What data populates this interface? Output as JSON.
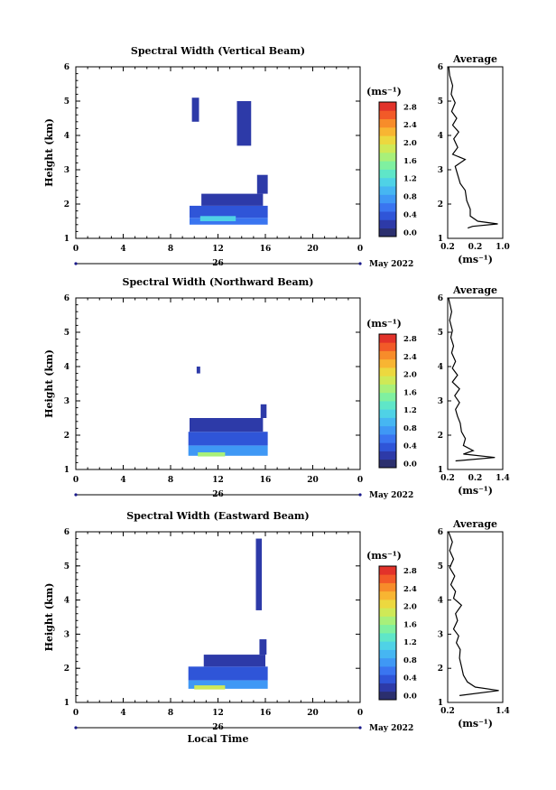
{
  "chart_data": [
    {
      "type": "heatmap",
      "title": "Spectral Width (Vertical Beam)",
      "ylabel": "Height (km)",
      "xlabel": "",
      "xlim": [
        0,
        24
      ],
      "ylim": [
        1,
        6
      ],
      "xticks": [
        "0",
        "4",
        "8",
        "12",
        "16",
        "20",
        "0"
      ],
      "yticks": [
        "1",
        "2",
        "3",
        "4",
        "5",
        "6"
      ],
      "date_center_label": "26",
      "date_right_label": "May 2022",
      "colorbar": {
        "unit_label": "(ms⁻¹)",
        "tick_labels": [
          "0.0",
          "0.4",
          "0.8",
          "1.2",
          "1.6",
          "2.0",
          "2.4",
          "2.8"
        ],
        "range": [
          0,
          3.0
        ]
      },
      "data_blocks": [
        {
          "t0": 9.6,
          "t1": 16.2,
          "h0": 1.4,
          "h1": 1.6,
          "value": 0.7
        },
        {
          "t0": 9.6,
          "t1": 16.2,
          "h0": 1.6,
          "h1": 1.95,
          "value": 0.5
        },
        {
          "t0": 10.6,
          "t1": 15.8,
          "h0": 1.95,
          "h1": 2.3,
          "value": 0.35
        },
        {
          "t0": 15.3,
          "t1": 16.2,
          "h0": 2.3,
          "h1": 2.85,
          "value": 0.3
        },
        {
          "t0": 9.8,
          "t1": 10.4,
          "h0": 4.4,
          "h1": 5.1,
          "value": 0.25
        },
        {
          "t0": 13.6,
          "t1": 14.8,
          "h0": 3.7,
          "h1": 5.0,
          "value": 0.25
        },
        {
          "t0": 10.5,
          "t1": 13.5,
          "h0": 1.5,
          "h1": 1.65,
          "value": 1.3
        }
      ],
      "profile": {
        "title": "Average",
        "xticks": [
          "0.2",
          "0.2",
          "1.0"
        ],
        "xlabel": "(ms⁻¹)",
        "yticks": [
          "1",
          "2",
          "3",
          "4",
          "5",
          "6"
        ],
        "xlim": [
          0.1,
          1.2
        ],
        "ylim": [
          1,
          6
        ],
        "values": [
          [
            0.5,
            1.3
          ],
          [
            0.6,
            1.35
          ],
          [
            1.1,
            1.42
          ],
          [
            0.7,
            1.5
          ],
          [
            0.55,
            1.65
          ],
          [
            0.55,
            1.85
          ],
          [
            0.48,
            2.1
          ],
          [
            0.45,
            2.4
          ],
          [
            0.35,
            2.6
          ],
          [
            0.3,
            2.85
          ],
          [
            0.25,
            3.1
          ],
          [
            0.45,
            3.3
          ],
          [
            0.2,
            3.45
          ],
          [
            0.3,
            3.65
          ],
          [
            0.22,
            3.9
          ],
          [
            0.32,
            4.1
          ],
          [
            0.2,
            4.3
          ],
          [
            0.28,
            4.5
          ],
          [
            0.18,
            4.7
          ],
          [
            0.25,
            4.95
          ],
          [
            0.17,
            5.2
          ],
          [
            0.2,
            5.45
          ],
          [
            0.14,
            5.75
          ],
          [
            0.12,
            6.0
          ]
        ]
      }
    },
    {
      "type": "heatmap",
      "title": "Spectral Width (Northward Beam)",
      "ylabel": "Height (km)",
      "xlabel": "",
      "xlim": [
        0,
        24
      ],
      "ylim": [
        1,
        6
      ],
      "xticks": [
        "0",
        "4",
        "8",
        "12",
        "16",
        "20",
        "0"
      ],
      "yticks": [
        "1",
        "2",
        "3",
        "4",
        "5",
        "6"
      ],
      "date_center_label": "26",
      "date_right_label": "May 2022",
      "colorbar": {
        "unit_label": "(ms⁻¹)",
        "tick_labels": [
          "0.0",
          "0.4",
          "0.8",
          "1.2",
          "1.6",
          "2.0",
          "2.4",
          "2.8"
        ],
        "range": [
          0,
          3.0
        ]
      },
      "data_blocks": [
        {
          "t0": 9.5,
          "t1": 16.2,
          "h0": 1.4,
          "h1": 1.7,
          "value": 0.75
        },
        {
          "t0": 9.5,
          "t1": 16.2,
          "h0": 1.7,
          "h1": 2.1,
          "value": 0.5
        },
        {
          "t0": 9.6,
          "t1": 15.8,
          "h0": 2.1,
          "h1": 2.5,
          "value": 0.35
        },
        {
          "t0": 15.6,
          "t1": 16.1,
          "h0": 2.5,
          "h1": 2.9,
          "value": 0.3
        },
        {
          "t0": 10.2,
          "t1": 10.5,
          "h0": 3.8,
          "h1": 4.0,
          "value": 0.3
        },
        {
          "t0": 10.3,
          "t1": 12.6,
          "h0": 1.38,
          "h1": 1.5,
          "value": 1.8
        }
      ],
      "profile": {
        "title": "Average",
        "xticks": [
          "0.2",
          "0.2",
          "1.4"
        ],
        "xlabel": "(ms⁻¹)",
        "yticks": [
          "1",
          "2",
          "3",
          "4",
          "5",
          "6"
        ],
        "xlim": [
          0.1,
          1.5
        ],
        "ylim": [
          1,
          6
        ],
        "values": [
          [
            0.3,
            1.25
          ],
          [
            1.3,
            1.35
          ],
          [
            0.5,
            1.45
          ],
          [
            0.75,
            1.55
          ],
          [
            0.5,
            1.7
          ],
          [
            0.55,
            1.9
          ],
          [
            0.45,
            2.1
          ],
          [
            0.42,
            2.35
          ],
          [
            0.35,
            2.55
          ],
          [
            0.3,
            2.75
          ],
          [
            0.4,
            2.95
          ],
          [
            0.28,
            3.15
          ],
          [
            0.4,
            3.35
          ],
          [
            0.22,
            3.55
          ],
          [
            0.35,
            3.75
          ],
          [
            0.22,
            3.95
          ],
          [
            0.3,
            4.15
          ],
          [
            0.2,
            4.4
          ],
          [
            0.25,
            4.6
          ],
          [
            0.18,
            4.85
          ],
          [
            0.22,
            5.05
          ],
          [
            0.15,
            5.35
          ],
          [
            0.2,
            5.6
          ],
          [
            0.12,
            6.0
          ]
        ]
      }
    },
    {
      "type": "heatmap",
      "title": "Spectral Width (Eastward Beam)",
      "ylabel": "Height (km)",
      "xlabel": "Local Time",
      "xlim": [
        0,
        24
      ],
      "ylim": [
        1,
        6
      ],
      "xticks": [
        "0",
        "4",
        "8",
        "12",
        "16",
        "20",
        "0"
      ],
      "yticks": [
        "1",
        "2",
        "3",
        "4",
        "5",
        "6"
      ],
      "date_center_label": "26",
      "date_right_label": "May 2022",
      "colorbar": {
        "unit_label": "(ms⁻¹)",
        "tick_labels": [
          "0.0",
          "0.4",
          "0.8",
          "1.2",
          "1.6",
          "2.0",
          "2.4",
          "2.8"
        ],
        "range": [
          0,
          3.0
        ]
      },
      "data_blocks": [
        {
          "t0": 9.5,
          "t1": 16.2,
          "h0": 1.4,
          "h1": 1.65,
          "value": 0.75
        },
        {
          "t0": 9.5,
          "t1": 16.2,
          "h0": 1.65,
          "h1": 2.05,
          "value": 0.5
        },
        {
          "t0": 10.8,
          "t1": 16.0,
          "h0": 2.05,
          "h1": 2.4,
          "value": 0.35
        },
        {
          "t0": 15.5,
          "t1": 16.1,
          "h0": 2.4,
          "h1": 2.85,
          "value": 0.3
        },
        {
          "t0": 15.2,
          "t1": 15.7,
          "h0": 3.7,
          "h1": 5.8,
          "value": 0.3
        },
        {
          "t0": 10.0,
          "t1": 12.6,
          "h0": 1.38,
          "h1": 1.5,
          "value": 1.9
        }
      ],
      "profile": {
        "title": "Average",
        "xticks": [
          "0.2",
          "1.4"
        ],
        "xlabel": "(ms⁻¹)",
        "yticks": [
          "1",
          "2",
          "3",
          "4",
          "5",
          "6"
        ],
        "xlim": [
          0.1,
          1.5
        ],
        "ylim": [
          1,
          6
        ],
        "values": [
          [
            0.4,
            1.2
          ],
          [
            1.4,
            1.35
          ],
          [
            0.8,
            1.45
          ],
          [
            0.6,
            1.6
          ],
          [
            0.5,
            1.8
          ],
          [
            0.45,
            2.05
          ],
          [
            0.4,
            2.3
          ],
          [
            0.42,
            2.55
          ],
          [
            0.32,
            2.75
          ],
          [
            0.38,
            2.95
          ],
          [
            0.25,
            3.15
          ],
          [
            0.35,
            3.4
          ],
          [
            0.3,
            3.6
          ],
          [
            0.45,
            3.85
          ],
          [
            0.25,
            4.05
          ],
          [
            0.3,
            4.25
          ],
          [
            0.18,
            4.45
          ],
          [
            0.28,
            4.7
          ],
          [
            0.15,
            4.95
          ],
          [
            0.25,
            5.2
          ],
          [
            0.15,
            5.45
          ],
          [
            0.22,
            5.7
          ],
          [
            0.12,
            6.0
          ]
        ]
      }
    }
  ]
}
